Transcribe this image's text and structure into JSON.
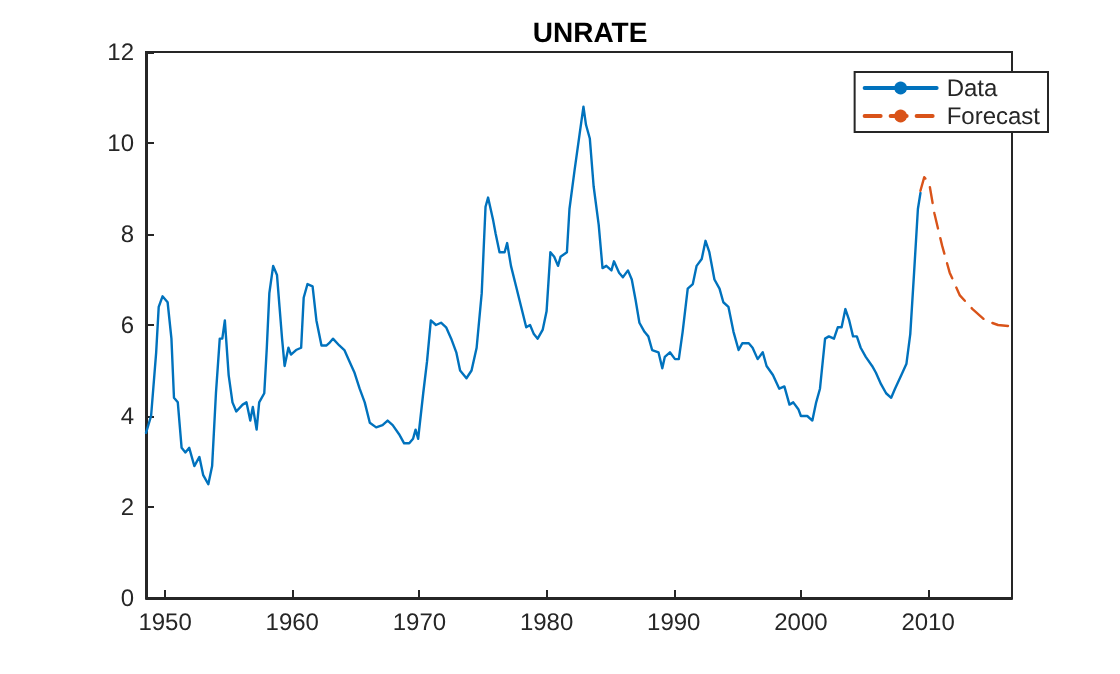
{
  "chart_data": {
    "type": "line",
    "title": "UNRATE",
    "xlim": [
      1948.5,
      2016.6
    ],
    "xticks": [
      1950,
      1960,
      1970,
      1980,
      1990,
      2000,
      2010
    ],
    "ylim": [
      0,
      12
    ],
    "yticks": [
      0,
      2,
      4,
      6,
      8,
      10,
      12
    ],
    "grid": false,
    "legend": "top right",
    "series": [
      {
        "name": "Data",
        "color": "#0072bd",
        "line_style": "solid",
        "x": [
          1948.5,
          1948.9,
          1949.3,
          1949.5,
          1949.8,
          1950.2,
          1950.5,
          1950.7,
          1951.0,
          1951.3,
          1951.6,
          1951.9,
          1952.3,
          1952.7,
          1953.0,
          1953.4,
          1953.7,
          1954.0,
          1954.3,
          1954.5,
          1954.7,
          1955.0,
          1955.3,
          1955.6,
          1956.1,
          1956.4,
          1956.7,
          1956.9,
          1957.2,
          1957.4,
          1957.8,
          1958.0,
          1958.2,
          1958.5,
          1958.8,
          1959.0,
          1959.2,
          1959.4,
          1959.7,
          1959.9,
          1960.3,
          1960.7,
          1960.9,
          1961.2,
          1961.6,
          1961.9,
          1962.3,
          1962.7,
          1962.9,
          1963.2,
          1963.7,
          1964.1,
          1964.5,
          1964.9,
          1965.3,
          1965.7,
          1966.1,
          1966.6,
          1967.1,
          1967.5,
          1967.9,
          1968.4,
          1968.8,
          1969.2,
          1969.5,
          1969.7,
          1969.9,
          1970.3,
          1970.6,
          1970.9,
          1971.3,
          1971.7,
          1972.1,
          1972.5,
          1972.9,
          1973.2,
          1973.7,
          1974.1,
          1974.5,
          1974.9,
          1975.2,
          1975.4,
          1975.8,
          1976.0,
          1976.3,
          1976.7,
          1976.9,
          1977.2,
          1977.6,
          1978.0,
          1978.4,
          1978.7,
          1979.0,
          1979.3,
          1979.7,
          1980.0,
          1980.3,
          1980.6,
          1980.9,
          1981.1,
          1981.6,
          1981.8,
          1982.2,
          1982.6,
          1982.9,
          1983.1,
          1983.4,
          1983.7,
          1984.1,
          1984.4,
          1984.7,
          1985.1,
          1985.3,
          1985.7,
          1986.0,
          1986.4,
          1986.7,
          1987.0,
          1987.3,
          1987.7,
          1988.0,
          1988.3,
          1988.8,
          1989.1,
          1989.3,
          1989.7,
          1990.1,
          1990.4,
          1990.7,
          1991.1,
          1991.5,
          1991.8,
          1992.2,
          1992.5,
          1992.8,
          1993.2,
          1993.6,
          1993.9,
          1994.3,
          1994.7,
          1995.1,
          1995.4,
          1995.9,
          1996.2,
          1996.6,
          1997.0,
          1997.3,
          1997.8,
          1998.3,
          1998.7,
          1999.1,
          1999.4,
          1999.8,
          2000.0,
          2000.5,
          2000.9,
          2001.2,
          2001.5,
          2001.9,
          2002.2,
          2002.6,
          2002.9,
          2003.2,
          2003.5,
          2003.8,
          2004.1,
          2004.4,
          2004.7,
          2005.1,
          2005.6,
          2005.9,
          2006.3,
          2006.7,
          2007.1,
          2007.4,
          2007.9,
          2008.3,
          2008.6,
          2008.9,
          2009.2,
          2009.4
        ],
        "values": [
          3.63,
          4.0,
          5.4,
          6.4,
          6.63,
          6.5,
          5.7,
          4.4,
          4.3,
          3.3,
          3.2,
          3.3,
          2.9,
          3.1,
          2.7,
          2.5,
          2.9,
          4.5,
          5.7,
          5.7,
          6.1,
          4.9,
          4.3,
          4.1,
          4.25,
          4.3,
          3.9,
          4.2,
          3.7,
          4.3,
          4.5,
          5.5,
          6.7,
          7.3,
          7.1,
          6.4,
          5.7,
          5.1,
          5.5,
          5.35,
          5.45,
          5.5,
          6.6,
          6.9,
          6.85,
          6.1,
          5.55,
          5.55,
          5.6,
          5.7,
          5.55,
          5.45,
          5.2,
          4.95,
          4.6,
          4.3,
          3.85,
          3.75,
          3.8,
          3.9,
          3.8,
          3.6,
          3.4,
          3.4,
          3.5,
          3.7,
          3.5,
          4.5,
          5.2,
          6.1,
          6.0,
          6.05,
          5.95,
          5.7,
          5.4,
          5.0,
          4.83,
          5.0,
          5.5,
          6.7,
          8.6,
          8.8,
          8.3,
          8.0,
          7.6,
          7.6,
          7.8,
          7.3,
          6.85,
          6.4,
          5.95,
          6.0,
          5.8,
          5.7,
          5.9,
          6.3,
          7.6,
          7.5,
          7.3,
          7.5,
          7.6,
          8.55,
          9.4,
          10.2,
          10.8,
          10.4,
          10.1,
          9.05,
          8.2,
          7.25,
          7.3,
          7.2,
          7.4,
          7.15,
          7.05,
          7.2,
          7.0,
          6.55,
          6.05,
          5.85,
          5.75,
          5.45,
          5.4,
          5.05,
          5.3,
          5.4,
          5.25,
          5.25,
          5.85,
          6.8,
          6.9,
          7.3,
          7.45,
          7.85,
          7.6,
          7.0,
          6.8,
          6.5,
          6.4,
          5.85,
          5.45,
          5.6,
          5.6,
          5.5,
          5.25,
          5.4,
          5.1,
          4.9,
          4.6,
          4.65,
          4.25,
          4.3,
          4.15,
          4.0,
          4.0,
          3.9,
          4.3,
          4.6,
          5.7,
          5.75,
          5.7,
          5.95,
          5.95,
          6.35,
          6.1,
          5.75,
          5.75,
          5.5,
          5.3,
          5.1,
          4.95,
          4.7,
          4.5,
          4.4,
          4.6,
          4.9,
          5.15,
          5.8,
          7.15,
          8.55,
          8.9
        ]
      },
      {
        "name": "Forecast",
        "color": "#d95319",
        "line_style": "dashed",
        "x": [
          2009.4,
          2009.7,
          2010.1,
          2010.5,
          2011.1,
          2011.7,
          2012.5,
          2013.5,
          2014.5,
          2015.5,
          2016.6
        ],
        "values": [
          8.95,
          9.25,
          9.1,
          8.45,
          7.75,
          7.15,
          6.65,
          6.35,
          6.1,
          6.0,
          5.97
        ]
      }
    ]
  }
}
